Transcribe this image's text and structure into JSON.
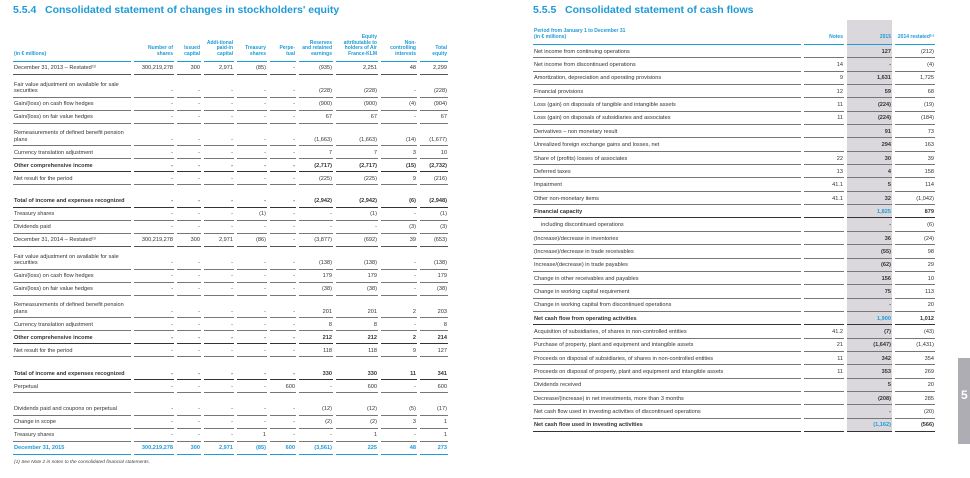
{
  "equity": {
    "section_number": "5.5.4",
    "title": "Consolidated statement of changes in stockholders' equity",
    "unit_label": "(in € millions)",
    "columns": [
      "Number of shares",
      "Issued capital",
      "Addi-tional paid-in capital",
      "Treasury shares",
      "Perpe-tual",
      "Reserves and retained earnings",
      "Equity attributable to holders of Air France-KLM",
      "Non-controlling interests",
      "Total equity"
    ],
    "rows": [
      {
        "label": "December 31, 2013 – Restated⁽¹⁾",
        "t": "s h",
        "v": [
          "300,219,278",
          "300",
          "2,971",
          "(85)",
          "-",
          "(935)",
          "2,251",
          "48",
          "2,299"
        ]
      },
      {
        "label": "Fair value adjustment on available for sale securities",
        "t": "d",
        "v": [
          "-",
          "-",
          "-",
          "-",
          "-",
          "(228)",
          "(228)",
          "-",
          "(228)"
        ]
      },
      {
        "label": "Gain/(loss) on cash flow hedges",
        "t": "s",
        "v": [
          "-",
          "-",
          "-",
          "-",
          "-",
          "(900)",
          "(900)",
          "(4)",
          "(904)"
        ]
      },
      {
        "label": "Gain/(loss) on fair value hedges",
        "t": "s",
        "v": [
          "-",
          "-",
          "-",
          "-",
          "-",
          "67",
          "67",
          "-",
          "67"
        ]
      },
      {
        "label": "Remeasurements of defined benefit pension plans",
        "t": "d",
        "v": [
          "-",
          "-",
          "-",
          "-",
          "-",
          "(1,663)",
          "(1,663)",
          "(14)",
          "(1,677)"
        ]
      },
      {
        "label": "Currency translation adjustment",
        "t": "s",
        "v": [
          "-",
          "-",
          "-",
          "-",
          "-",
          "7",
          "7",
          "3",
          "10"
        ]
      },
      {
        "label": "Other comprehensive income",
        "t": "s b",
        "v": [
          "-",
          "-",
          "-",
          "-",
          "-",
          "(2,717)",
          "(2,717)",
          "(15)",
          "(2,732)"
        ]
      },
      {
        "label": "Net result for the period",
        "t": "s",
        "v": [
          "-",
          "-",
          "-",
          "-",
          "-",
          "(225)",
          "(225)",
          "9",
          "(216)"
        ]
      },
      {
        "label": "Total of income and expenses recognized",
        "t": "d b",
        "v": [
          "-",
          "-",
          "-",
          "-",
          "-",
          "(2,942)",
          "(2,942)",
          "(6)",
          "(2,948)"
        ]
      },
      {
        "label": "Treasury shares",
        "t": "s",
        "v": [
          "-",
          "-",
          "-",
          "(1)",
          "-",
          "-",
          "(1)",
          "-",
          "(1)"
        ]
      },
      {
        "label": "Dividends paid",
        "t": "s",
        "v": [
          "-",
          "-",
          "-",
          "-",
          "-",
          "-",
          "-",
          "(3)",
          "(3)"
        ]
      },
      {
        "label": "December 31, 2014 – Restated⁽¹⁾",
        "t": "s h",
        "v": [
          "300,219,278",
          "300",
          "2,971",
          "(86)",
          "-",
          "(3,877)",
          "(692)",
          "39",
          "(653)"
        ]
      },
      {
        "label": "Fair value adjustment on available for sale securities",
        "t": "d",
        "v": [
          "-",
          "-",
          "-",
          "-",
          "-",
          "(138)",
          "(138)",
          "-",
          "(138)"
        ]
      },
      {
        "label": "Gain/(loss) on cash flow hedges",
        "t": "s",
        "v": [
          "-",
          "-",
          "-",
          "-",
          "-",
          "179",
          "179",
          "-",
          "179"
        ]
      },
      {
        "label": "Gain/(loss) on fair value hedges",
        "t": "s",
        "v": [
          "-",
          "-",
          "-",
          "-",
          "-",
          "(38)",
          "(38)",
          "-",
          "(38)"
        ]
      },
      {
        "label": "Remeasurements of defined benefit pension plans",
        "t": "d",
        "v": [
          "-",
          "-",
          "-",
          "-",
          "-",
          "201",
          "201",
          "2",
          "203"
        ]
      },
      {
        "label": "Currency translation adjustment",
        "t": "s",
        "v": [
          "-",
          "-",
          "-",
          "-",
          "-",
          "8",
          "8",
          "-",
          "8"
        ]
      },
      {
        "label": "Other comprehensive income",
        "t": "s b",
        "v": [
          "-",
          "-",
          "-",
          "-",
          "-",
          "212",
          "212",
          "2",
          "214"
        ]
      },
      {
        "label": "Net result for the period",
        "t": "s",
        "v": [
          "-",
          "-",
          "-",
          "-",
          "-",
          "118",
          "118",
          "9",
          "127"
        ]
      },
      {
        "label": "Total of income and expenses recognized",
        "t": "d b",
        "v": [
          "-",
          "-",
          "-",
          "-",
          "-",
          "330",
          "330",
          "11",
          "341"
        ]
      },
      {
        "label": "Perpetual",
        "t": "s",
        "v": [
          "-",
          "-",
          "-",
          "-",
          "600",
          "-",
          "600",
          "-",
          "600"
        ]
      },
      {
        "label": "Dividends paid and coupons on perpetual",
        "t": "d",
        "v": [
          "-",
          "-",
          "-",
          "-",
          "-",
          "(12)",
          "(12)",
          "(5)",
          "(17)"
        ]
      },
      {
        "label": "Change in scope",
        "t": "s",
        "v": [
          "-",
          "-",
          "-",
          "-",
          "-",
          "(2)",
          "(2)",
          "3",
          "1"
        ]
      },
      {
        "label": "Treasury shares",
        "t": "s",
        "v": [
          "-",
          "-",
          "-",
          "1",
          "-",
          "-",
          "1",
          "-",
          "1"
        ]
      },
      {
        "label": "December 31, 2015",
        "t": "s blue",
        "v": [
          "300,219,278",
          "300",
          "2,971",
          "(85)",
          "600",
          "(3,561)",
          "225",
          "48",
          "273"
        ]
      }
    ],
    "footnote": "(1) See Note 2 in notes to the consolidated financial statements."
  },
  "cashflow": {
    "section_number": "5.5.5",
    "title": "Consolidated statement of cash flows",
    "period_label": "Period from January 1 to December 31",
    "unit_label": "(in € millions)",
    "columns": [
      "Notes",
      "2015",
      "2014 restated⁽¹⁾"
    ],
    "rows": [
      {
        "label": "Net income from continuing operations",
        "note": "",
        "a": "127",
        "b": "(212)"
      },
      {
        "label": "Net income from discontinued operations",
        "note": "14",
        "a": "-",
        "b": "(4)"
      },
      {
        "label": "Amortization, depreciation and operating provisions",
        "note": "9",
        "a": "1,631",
        "b": "1,725"
      },
      {
        "label": "Financial provisions",
        "note": "12",
        "a": "59",
        "b": "68"
      },
      {
        "label": "Loss (gain) on disposals of tangible and intangible assets",
        "note": "11",
        "a": "(224)",
        "b": "(19)"
      },
      {
        "label": "Loss (gain) on disposals of subsidiaries and associates",
        "note": "11",
        "a": "(224)",
        "b": "(184)"
      },
      {
        "label": "Derivatives – non monetary result",
        "note": "",
        "a": "91",
        "b": "73"
      },
      {
        "label": "Unrealized foreign exchange gains and losses, net",
        "note": "",
        "a": "294",
        "b": "163"
      },
      {
        "label": "Share of (profits) losses of associates",
        "note": "22",
        "a": "30",
        "b": "39"
      },
      {
        "label": "Deferred taxes",
        "note": "13",
        "a": "4",
        "b": "158"
      },
      {
        "label": "Impairment",
        "note": "41.1",
        "a": "5",
        "b": "114"
      },
      {
        "label": "Other non-monetary items",
        "note": "41.1",
        "a": "32",
        "b": "(1,042)"
      },
      {
        "label": "Financial capacity",
        "note": "",
        "a": "1,825",
        "b": "879",
        "t": "b"
      },
      {
        "label": "including discontinued operations",
        "note": "",
        "a": "-",
        "b": "(6)",
        "t": "ind"
      },
      {
        "label": "(Increase)/decrease in inventories",
        "note": "",
        "a": "36",
        "b": "(24)"
      },
      {
        "label": "(Increase)/decrease in trade receivables",
        "note": "",
        "a": "(55)",
        "b": "98"
      },
      {
        "label": "Increase/(decrease) in trade payables",
        "note": "",
        "a": "(62)",
        "b": "29"
      },
      {
        "label": "Change in other receivables and payables",
        "note": "",
        "a": "156",
        "b": "10"
      },
      {
        "label": "Change in working capital requirement",
        "note": "",
        "a": "75",
        "b": "113"
      },
      {
        "label": "Change in working capital from discontinued operations",
        "note": "",
        "a": "-",
        "b": "20"
      },
      {
        "label": "Net cash flow from operating activities",
        "note": "",
        "a": "1,900",
        "b": "1,012",
        "t": "b"
      },
      {
        "label": "Acquisition of subsidiaries, of shares in non-controlled entities",
        "note": "41.2",
        "a": "(7)",
        "b": "(43)"
      },
      {
        "label": "Purchase of property, plant and equipment and intangible assets",
        "note": "21",
        "a": "(1,647)",
        "b": "(1,431)"
      },
      {
        "label": "Proceeds on disposal of subsidiaries, of shares in non-controlled entities",
        "note": "11",
        "a": "342",
        "b": "354"
      },
      {
        "label": "Proceeds on disposal of property, plant and equipment and intangible assets",
        "note": "11",
        "a": "353",
        "b": "269"
      },
      {
        "label": "Dividends received",
        "note": "",
        "a": "5",
        "b": "20"
      },
      {
        "label": "Decrease/(increase) in net investments, more than 3 months",
        "note": "",
        "a": "(208)",
        "b": "285"
      },
      {
        "label": "Net cash flow used in investing activities of discontinued operations",
        "note": "",
        "a": "-",
        "b": "(20)"
      },
      {
        "label": "Net cash flow used in investing activities",
        "note": "",
        "a": "(1,162)",
        "b": "(566)",
        "t": "b"
      }
    ]
  },
  "side_tab": "5",
  "colors": {
    "accent": "#1e9bd7",
    "highlight_column": "#dad8dd"
  }
}
